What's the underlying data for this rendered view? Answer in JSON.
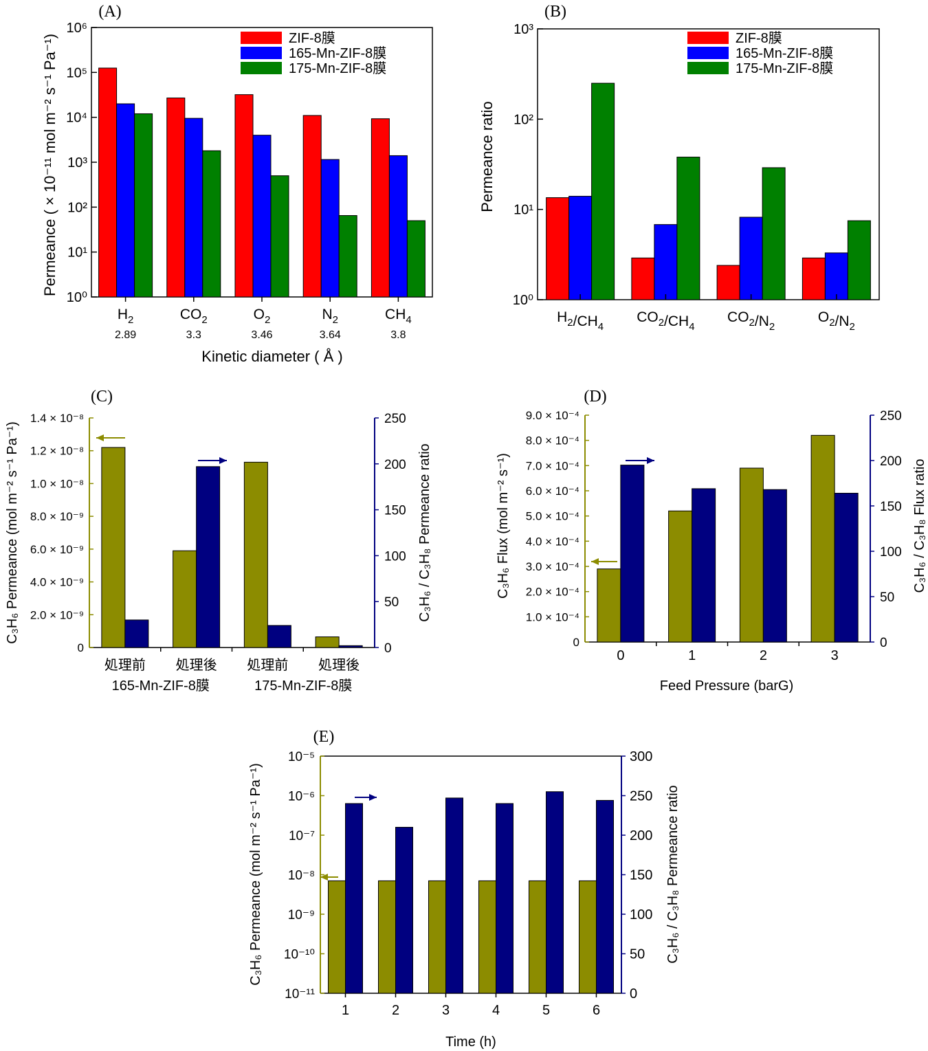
{
  "colors": {
    "red": "#ff0000",
    "blue": "#0000ff",
    "green": "#008000",
    "olive": "#8c8c00",
    "navy": "#000080"
  },
  "chart_data": [
    {
      "panel": "(A)",
      "type": "bar",
      "yscale": "log",
      "categories": [
        {
          "label": "H",
          "sub": "2",
          "diameter": "2.89"
        },
        {
          "label": "CO",
          "sub": "2",
          "diameter": "3.3"
        },
        {
          "label": "O",
          "sub": "2",
          "diameter": "3.46"
        },
        {
          "label": "N",
          "sub": "2",
          "diameter": "3.64"
        },
        {
          "label": "CH",
          "sub": "4",
          "diameter": "3.8"
        }
      ],
      "series": [
        {
          "name": "ZIF-8膜",
          "color": "#ff0000",
          "values": [
            125000,
            27000,
            32000,
            11000,
            9300
          ]
        },
        {
          "name": "165-Mn-ZIF-8膜",
          "color": "#0000ff",
          "values": [
            20000,
            9500,
            4000,
            1150,
            1400
          ]
        },
        {
          "name": "175-Mn-ZIF-8膜",
          "color": "#008000",
          "values": [
            12000,
            1800,
            500,
            65,
            50
          ]
        }
      ],
      "ylim": [
        1,
        1000000
      ],
      "yticks": [
        "10⁰",
        "10¹",
        "10²",
        "10³",
        "10⁴",
        "10⁵",
        "10⁶"
      ],
      "ylabel": "Permeance ( × 10⁻¹¹ mol m⁻² s⁻¹ Pa⁻¹)",
      "xlabel": "Kinetic diameter ( Å )",
      "legend": "top-right"
    },
    {
      "panel": "(B)",
      "type": "bar",
      "yscale": "log",
      "categories": [
        {
          "parts": [
            [
              "H",
              "2"
            ],
            [
              "/CH",
              "4"
            ]
          ]
        },
        {
          "parts": [
            [
              "CO",
              "2"
            ],
            [
              "/CH",
              "4"
            ]
          ]
        },
        {
          "parts": [
            [
              "CO",
              "2"
            ],
            [
              "/N",
              "2"
            ]
          ]
        },
        {
          "parts": [
            [
              "O",
              "2"
            ],
            [
              "/N",
              "2"
            ]
          ]
        }
      ],
      "series": [
        {
          "name": "ZIF-8膜",
          "color": "#ff0000",
          "values": [
            13.5,
            2.9,
            2.4,
            2.9
          ]
        },
        {
          "name": "165-Mn-ZIF-8膜",
          "color": "#0000ff",
          "values": [
            14,
            6.8,
            8.2,
            3.3
          ]
        },
        {
          "name": "175-Mn-ZIF-8膜",
          "color": "#008000",
          "values": [
            250,
            38,
            29,
            7.5
          ]
        }
      ],
      "ylim": [
        1,
        1000
      ],
      "yticks": [
        "10⁰",
        "10¹",
        "10²",
        "10³"
      ],
      "ylabel": "Permeance ratio",
      "legend": "top-right"
    },
    {
      "panel": "(C)",
      "type": "bar",
      "categories": [
        "処理前",
        "処理後",
        "処理前",
        "処理後"
      ],
      "groups": [
        "165-Mn-ZIF-8膜",
        "175-Mn-ZIF-8膜"
      ],
      "series": [
        {
          "axis": "left",
          "color": "#8c8c00",
          "values": [
            1.22e-08,
            5.9e-09,
            1.13e-08,
            6.5e-10
          ]
        },
        {
          "axis": "right",
          "color": "#000080",
          "values": [
            30,
            197,
            24,
            2
          ]
        }
      ],
      "left_ylim": [
        0,
        1.4e-08
      ],
      "left_yticks": [
        "0",
        "2.0 × 10⁻⁹",
        "4.0 × 10⁻⁹",
        "6.0 × 10⁻⁹",
        "8.0 × 10⁻⁹",
        "1.0 × 10⁻⁸",
        "1.2 × 10⁻⁸",
        "1.4 × 10⁻⁸"
      ],
      "right_ylim": [
        0,
        250
      ],
      "right_yticks": [
        "0",
        "50",
        "100",
        "150",
        "200",
        "250"
      ],
      "ylabel_left": "C₃H₆ Permeance (mol m⁻² s⁻¹ Pa⁻¹)",
      "ylabel_right": "C₃H₆ / C₃H₈ Permeance ratio"
    },
    {
      "panel": "(D)",
      "type": "bar",
      "categories": [
        "0",
        "1",
        "2",
        "3"
      ],
      "series": [
        {
          "axis": "left",
          "color": "#8c8c00",
          "values": [
            0.00029,
            0.00052,
            0.00069,
            0.00082
          ]
        },
        {
          "axis": "right",
          "color": "#000080",
          "values": [
            195,
            169,
            168,
            164
          ]
        }
      ],
      "left_ylim": [
        0,
        0.0009
      ],
      "left_yticks": [
        "0",
        "1.0 × 10⁻⁴",
        "2.0 × 10⁻⁴",
        "3.0 × 10⁻⁴",
        "4.0 × 10⁻⁴",
        "5.0 × 10⁻⁴",
        "6.0 × 10⁻⁴",
        "7.0 × 10⁻⁴",
        "8.0 × 10⁻⁴",
        "9.0 × 10⁻⁴"
      ],
      "right_ylim": [
        0,
        250
      ],
      "right_yticks": [
        "0",
        "50",
        "100",
        "150",
        "200",
        "250"
      ],
      "xlabel": "Feed Pressure (barG)",
      "ylabel_left": "C₃H₆ Flux (mol m⁻² s⁻¹)",
      "ylabel_right": "C₃H₆ / C₃H₈ Flux ratio"
    },
    {
      "panel": "(E)",
      "type": "bar",
      "categories": [
        "1",
        "2",
        "3",
        "4",
        "5",
        "6"
      ],
      "left_yscale": "log",
      "series": [
        {
          "axis": "left",
          "color": "#8c8c00",
          "values": [
            7e-09,
            7e-09,
            7e-09,
            7e-09,
            7e-09,
            7e-09
          ]
        },
        {
          "axis": "right",
          "color": "#000080",
          "values": [
            240,
            210,
            247,
            240,
            255,
            244
          ]
        }
      ],
      "left_ylim": [
        1e-11,
        1e-05
      ],
      "left_yticks": [
        "10⁻¹¹",
        "10⁻¹⁰",
        "10⁻⁹",
        "10⁻⁸",
        "10⁻⁷",
        "10⁻⁶",
        "10⁻⁵"
      ],
      "right_ylim": [
        0,
        300
      ],
      "right_yticks": [
        "0",
        "50",
        "100",
        "150",
        "200",
        "250",
        "300"
      ],
      "xlabel": "Time (h)",
      "ylabel_left": "C₃H₆ Permeance (mol m⁻² s⁻¹ Pa⁻¹)",
      "ylabel_right": "C₃H₆ / C₃H₈ Permeance ratio"
    }
  ]
}
